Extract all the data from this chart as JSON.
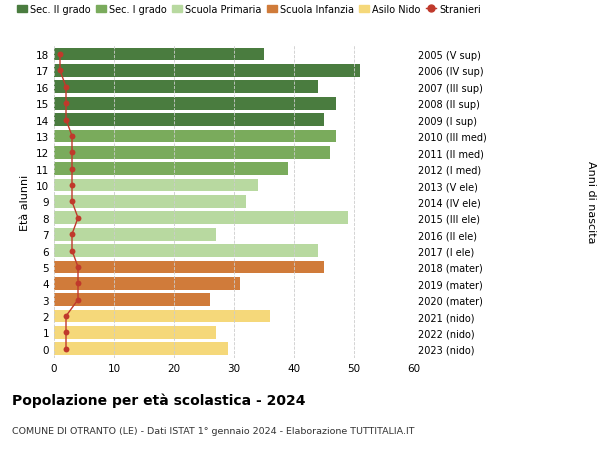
{
  "ages": [
    18,
    17,
    16,
    15,
    14,
    13,
    12,
    11,
    10,
    9,
    8,
    7,
    6,
    5,
    4,
    3,
    2,
    1,
    0
  ],
  "right_labels": [
    "2005 (V sup)",
    "2006 (IV sup)",
    "2007 (III sup)",
    "2008 (II sup)",
    "2009 (I sup)",
    "2010 (III med)",
    "2011 (II med)",
    "2012 (I med)",
    "2013 (V ele)",
    "2014 (IV ele)",
    "2015 (III ele)",
    "2016 (II ele)",
    "2017 (I ele)",
    "2018 (mater)",
    "2019 (mater)",
    "2020 (mater)",
    "2021 (nido)",
    "2022 (nido)",
    "2023 (nido)"
  ],
  "bar_values": [
    35,
    51,
    44,
    47,
    45,
    47,
    46,
    39,
    34,
    32,
    49,
    27,
    44,
    45,
    31,
    26,
    36,
    27,
    29
  ],
  "stranieri_values": [
    1,
    1,
    2,
    2,
    2,
    3,
    3,
    3,
    3,
    3,
    4,
    3,
    3,
    4,
    4,
    4,
    2,
    2,
    2
  ],
  "bar_colors": [
    "#4a7c3f",
    "#4a7c3f",
    "#4a7c3f",
    "#4a7c3f",
    "#4a7c3f",
    "#7aab5c",
    "#7aab5c",
    "#7aab5c",
    "#b8d9a0",
    "#b8d9a0",
    "#b8d9a0",
    "#b8d9a0",
    "#b8d9a0",
    "#d07b3a",
    "#d07b3a",
    "#d07b3a",
    "#f5d87a",
    "#f5d87a",
    "#f5d87a"
  ],
  "legend_items": [
    {
      "label": "Sec. II grado",
      "color": "#4a7c3f"
    },
    {
      "label": "Sec. I grado",
      "color": "#7aab5c"
    },
    {
      "label": "Scuola Primaria",
      "color": "#b8d9a0"
    },
    {
      "label": "Scuola Infanzia",
      "color": "#d07b3a"
    },
    {
      "label": "Asilo Nido",
      "color": "#f5d87a"
    },
    {
      "label": "Stranieri",
      "color": "#c0392b"
    }
  ],
  "ylabel_left": "Età alunni",
  "ylabel_right": "Anni di nascita",
  "xlim": [
    0,
    60
  ],
  "xticks": [
    0,
    10,
    20,
    30,
    40,
    50,
    60
  ],
  "title": "Popolazione per età scolastica - 2024",
  "subtitle": "COMUNE DI OTRANTO (LE) - Dati ISTAT 1° gennaio 2024 - Elaborazione TUTTITALIA.IT",
  "bar_height": 0.78,
  "stranieri_color": "#c0392b",
  "stranieri_line_color": "#c0392b",
  "bg_color": "#ffffff",
  "grid_color": "#cccccc"
}
